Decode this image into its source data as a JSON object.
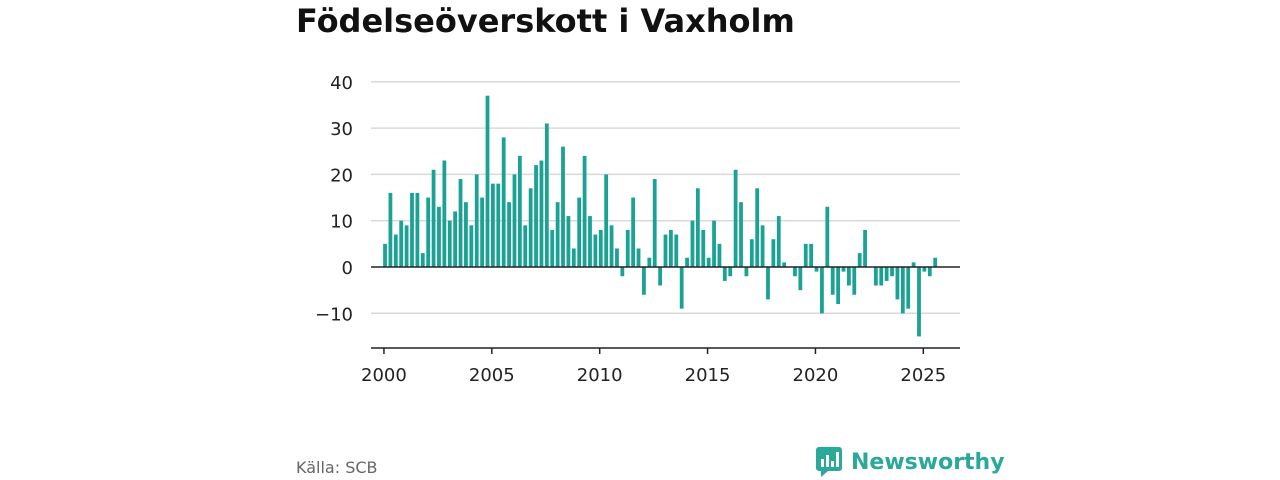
{
  "title": "Födelseöverskott i Vaxholm",
  "source_label": "Källa: SCB",
  "brand": {
    "name": "Newsworthy",
    "logo_icon": "newsworthy-logo-icon"
  },
  "colors": {
    "bar": "#1aa394",
    "grid": "#d9d9d9",
    "axis": "#222222",
    "brand": "#2aa89a"
  },
  "chart_data": {
    "type": "bar",
    "title": "Födelseöverskott i Vaxholm",
    "xlabel": "",
    "ylabel": "",
    "ylim": [
      -15,
      42
    ],
    "xlim": [
      1999.4,
      2026.7
    ],
    "yticks": [
      40,
      30,
      20,
      10,
      0,
      -10
    ],
    "ytick_labels": [
      "40",
      "30",
      "20",
      "10",
      "0",
      "−10"
    ],
    "xticks": [
      2000,
      2005,
      2010,
      2015,
      2020,
      2025
    ],
    "xtick_labels": [
      "2000",
      "2005",
      "2010",
      "2015",
      "2020",
      "2025"
    ],
    "grid": true,
    "frequency": "quarterly",
    "start": "2000-Q1",
    "values": [
      5,
      16,
      7,
      10,
      9,
      16,
      16,
      3,
      15,
      21,
      13,
      23,
      10,
      12,
      19,
      14,
      9,
      20,
      15,
      37,
      18,
      18,
      28,
      14,
      20,
      24,
      9,
      17,
      22,
      23,
      31,
      8,
      14,
      26,
      11,
      4,
      15,
      24,
      11,
      7,
      8,
      20,
      9,
      4,
      -2,
      8,
      15,
      4,
      -6,
      2,
      19,
      -4,
      7,
      8,
      7,
      -9,
      2,
      10,
      17,
      8,
      2,
      10,
      5,
      -3,
      -2,
      21,
      14,
      -2,
      6,
      17,
      9,
      -7,
      6,
      11,
      1,
      0,
      -2,
      -5,
      5,
      5,
      -1,
      -10,
      13,
      -6,
      -8,
      -1,
      -4,
      -6,
      3,
      8,
      0,
      -4,
      -4,
      -3,
      -2,
      -7,
      -10,
      -9,
      1,
      -15,
      -1,
      -2,
      2
    ]
  }
}
